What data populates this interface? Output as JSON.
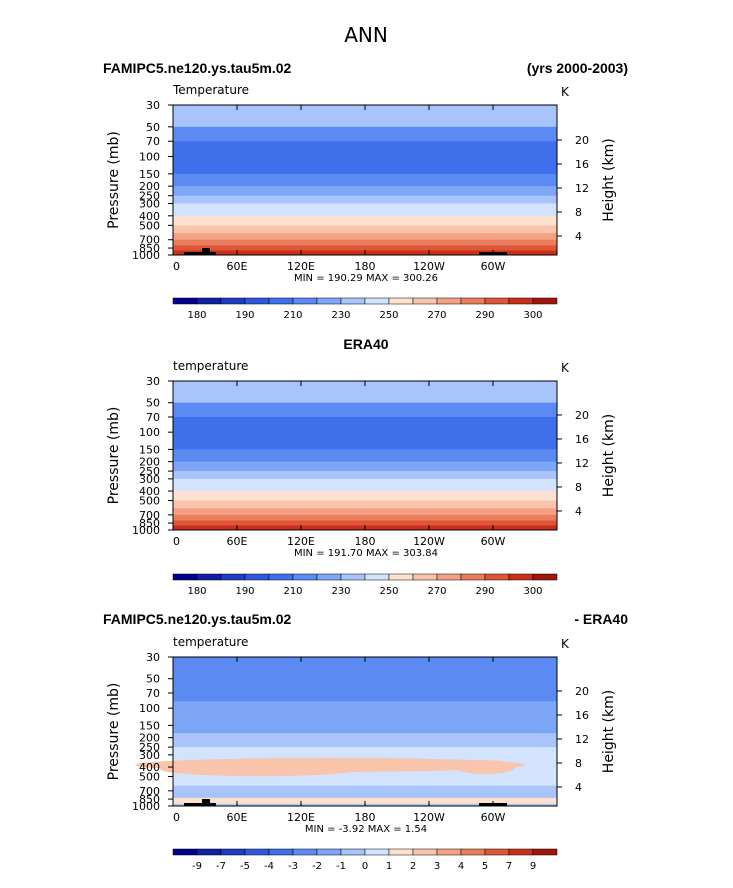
{
  "figure_title": "ANN",
  "chart_data": [
    {
      "type": "heatmap",
      "panel": "model",
      "left_title": "FAMIPC5.ne120.ys.tau5m.02",
      "right_title": "(yrs 2000-2003)",
      "variable_label": "Temperature",
      "units": "K",
      "ylabel": "Pressure  (mb)",
      "ylabel_right": "Height  (km)",
      "pressure_ticks": [
        "30",
        "50",
        "70",
        "100",
        "150",
        "200",
        "250",
        "300",
        "400",
        "500",
        "700",
        "850",
        "1000"
      ],
      "height_ticks": [
        "4",
        "8",
        "12",
        "16",
        "20"
      ],
      "x_ticks": [
        "0",
        "60E",
        "120E",
        "180",
        "120W",
        "60W"
      ],
      "stats": "MIN = 190.29   MAX = 300.26",
      "min": 190.29,
      "max": 300.26,
      "levels": [
        "180",
        "190",
        "210",
        "230",
        "250",
        "270",
        "290",
        "300"
      ],
      "bands": [
        {
          "p": 30,
          "level": 7
        },
        {
          "p": 50,
          "level": 5
        },
        {
          "p": 70,
          "level": 4
        },
        {
          "p": 150,
          "level": 5
        },
        {
          "p": 200,
          "level": 6
        },
        {
          "p": 250,
          "level": 7
        },
        {
          "p": 300,
          "level": 8
        },
        {
          "p": 400,
          "level": 9
        },
        {
          "p": 500,
          "level": 10
        },
        {
          "p": 600,
          "level": 11
        },
        {
          "p": 700,
          "level": 12
        },
        {
          "p": 800,
          "level": 13
        },
        {
          "p": 900,
          "level": 14
        },
        {
          "p": 1000,
          "level": 15
        }
      ]
    },
    {
      "type": "heatmap",
      "panel": "obs",
      "left_title": "",
      "center_title": "ERA40",
      "variable_label": "temperature",
      "units": "K",
      "ylabel": "Pressure  (mb)",
      "ylabel_right": "Height  (km)",
      "pressure_ticks": [
        "30",
        "50",
        "70",
        "100",
        "150",
        "200",
        "250",
        "300",
        "400",
        "500",
        "700",
        "850",
        "1000"
      ],
      "height_ticks": [
        "4",
        "8",
        "12",
        "16",
        "20"
      ],
      "x_ticks": [
        "0",
        "60E",
        "120E",
        "180",
        "120W",
        "60W"
      ],
      "stats": "MIN = 191.70   MAX = 303.84",
      "min": 191.7,
      "max": 303.84,
      "levels": [
        "180",
        "190",
        "210",
        "230",
        "250",
        "270",
        "290",
        "300"
      ],
      "bands": [
        {
          "p": 30,
          "level": 7
        },
        {
          "p": 50,
          "level": 5
        },
        {
          "p": 70,
          "level": 4
        },
        {
          "p": 150,
          "level": 5
        },
        {
          "p": 200,
          "level": 6
        },
        {
          "p": 250,
          "level": 7
        },
        {
          "p": 300,
          "level": 8
        },
        {
          "p": 400,
          "level": 9
        },
        {
          "p": 500,
          "level": 10
        },
        {
          "p": 600,
          "level": 11
        },
        {
          "p": 700,
          "level": 12
        },
        {
          "p": 800,
          "level": 13
        },
        {
          "p": 900,
          "level": 14
        },
        {
          "p": 1000,
          "level": 15
        }
      ]
    },
    {
      "type": "heatmap",
      "panel": "diff",
      "left_title": "FAMIPC5.ne120.ys.tau5m.02",
      "right_title": "- ERA40",
      "variable_label": "temperature",
      "units": "K",
      "ylabel": "Pressure  (mb)",
      "ylabel_right": "Height  (km)",
      "pressure_ticks": [
        "30",
        "50",
        "70",
        "100",
        "150",
        "200",
        "250",
        "300",
        "400",
        "500",
        "700",
        "850",
        "1000"
      ],
      "height_ticks": [
        "4",
        "8",
        "12",
        "16",
        "20"
      ],
      "x_ticks": [
        "0",
        "60E",
        "120E",
        "180",
        "120W",
        "60W"
      ],
      "stats": "MIN =   -3.92   MAX =    1.54",
      "min": -3.92,
      "max": 1.54,
      "levels": [
        "-9",
        "-7",
        "-5",
        "-4",
        "-3",
        "-2",
        "-1",
        "0",
        "1",
        "2",
        "3",
        "4",
        "5",
        "7",
        "9"
      ],
      "bands": [
        {
          "p": 30,
          "level": 5
        },
        {
          "p": 85,
          "level": 6
        },
        {
          "p": 180,
          "level": 7
        },
        {
          "p": 250,
          "level": 8
        },
        {
          "p": 620,
          "level": 7
        },
        {
          "p": 1000,
          "level": 8
        }
      ]
    }
  ],
  "colormap": [
    "#00008b",
    "#0f1fa6",
    "#1e3ec2",
    "#2f58dd",
    "#3f6fea",
    "#5a8af2",
    "#7ea6f6",
    "#a8c4fa",
    "#d3e3fd",
    "#fde1d0",
    "#f8c4ab",
    "#f2a184",
    "#ea7d5e",
    "#df5637",
    "#c8301c",
    "#a0150c",
    "#7a0403"
  ]
}
